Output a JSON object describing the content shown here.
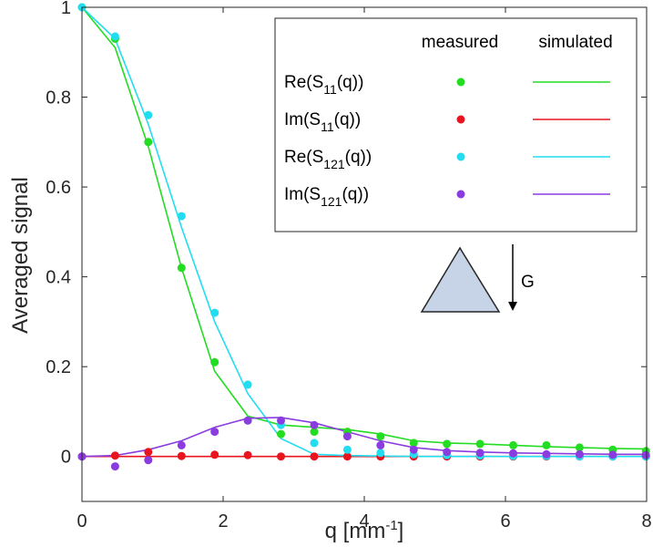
{
  "chart_data": {
    "type": "line",
    "xlabel": "q [mm",
    "xlabel_sup": "-1",
    "xlabel_end": "]",
    "ylabel": "Averaged signal",
    "xlim": [
      0,
      8
    ],
    "ylim": [
      -0.1,
      1
    ],
    "xticks": [
      0,
      2,
      4,
      6,
      8
    ],
    "yticks": [
      0,
      0.2,
      0.4,
      0.6,
      0.8,
      1
    ],
    "xtick_labels": [
      "0",
      "2",
      "4",
      "6",
      "8"
    ],
    "ytick_labels": [
      "0",
      "0.2",
      "0.4",
      "0.6",
      "0.8",
      "1"
    ],
    "legend": {
      "header_measured": "measured",
      "header_simulated": "simulated",
      "placement": "top-right"
    },
    "series": [
      {
        "id": "re11",
        "label_pre": "Re(S",
        "label_sub": "11",
        "label_post": "(q))",
        "color": "#22dd22",
        "measured": {
          "x": [
            0,
            0.47,
            0.94,
            1.41,
            1.88,
            2.35,
            2.82,
            3.29,
            3.76,
            4.23,
            4.7,
            5.17,
            5.64,
            6.11,
            6.58,
            7.05,
            7.52,
            7.99
          ],
          "y": [
            1.0,
            0.93,
            0.7,
            0.42,
            0.21,
            0.08,
            0.05,
            0.055,
            0.055,
            0.045,
            0.03,
            0.028,
            0.028,
            0.025,
            0.025,
            0.02,
            0.015,
            0.012
          ]
        },
        "simulated": {
          "x": [
            0,
            0.47,
            0.94,
            1.41,
            1.88,
            2.35,
            2.82,
            3.29,
            3.76,
            4.23,
            4.7,
            5.17,
            5.64,
            6.11,
            6.58,
            7.05,
            7.52,
            7.99
          ],
          "y": [
            1.0,
            0.91,
            0.69,
            0.42,
            0.19,
            0.09,
            0.07,
            0.065,
            0.06,
            0.05,
            0.035,
            0.03,
            0.028,
            0.025,
            0.022,
            0.02,
            0.018,
            0.017
          ]
        }
      },
      {
        "id": "im11",
        "label_pre": "Im(S",
        "label_sub": "11",
        "label_post": "(q))",
        "color": "#e8141e",
        "measured": {
          "x": [
            0,
            0.47,
            0.94,
            1.41,
            1.88,
            2.35,
            2.82,
            3.29,
            3.76,
            4.23,
            4.7,
            5.17,
            5.64,
            6.11,
            6.58,
            7.05,
            7.52,
            7.99
          ],
          "y": [
            0,
            0.002,
            0.01,
            0.001,
            0.004,
            0.003,
            0.0,
            0.0,
            0.0,
            0.0,
            0.0,
            0.0,
            0.0,
            0.0,
            0.0,
            0.0,
            0.0,
            0.0
          ]
        },
        "simulated": {
          "x": [
            0,
            8
          ],
          "y": [
            0,
            0
          ]
        }
      },
      {
        "id": "re121",
        "label_pre": "Re(S",
        "label_sub": "121",
        "label_post": "(q))",
        "color": "#22ddf0",
        "measured": {
          "x": [
            0,
            0.47,
            0.94,
            1.41,
            1.88,
            2.35,
            2.82,
            3.29,
            3.76,
            4.23,
            4.7,
            5.17,
            5.64,
            6.11,
            6.58,
            7.05,
            7.52,
            7.99
          ],
          "y": [
            1.0,
            0.935,
            0.76,
            0.535,
            0.32,
            0.16,
            0.07,
            0.03,
            0.015,
            0.008,
            0.005,
            0.003,
            0.002,
            0.001,
            0.001,
            0.0,
            0.0,
            0.0
          ]
        },
        "simulated": {
          "x": [
            0,
            0.47,
            0.94,
            1.41,
            1.88,
            2.35,
            2.82,
            3.29,
            3.76,
            4.23,
            4.7,
            5.17,
            5.64,
            6.11,
            6.58,
            7.05,
            7.52,
            7.99
          ],
          "y": [
            1.0,
            0.93,
            0.74,
            0.51,
            0.3,
            0.14,
            0.04,
            0.005,
            0.002,
            0.001,
            0.0,
            0.0,
            0.0,
            0.0,
            0.0,
            0.0,
            0.0,
            0.0
          ]
        }
      },
      {
        "id": "im121",
        "label_pre": "Im(S",
        "label_sub": "121",
        "label_post": "(q))",
        "color": "#8a3ce0",
        "measured": {
          "x": [
            0,
            0.47,
            0.94,
            1.41,
            1.88,
            2.35,
            2.82,
            3.29,
            3.76,
            4.23,
            4.7,
            5.17,
            5.64,
            6.11,
            6.58,
            7.05,
            7.52,
            7.99
          ],
          "y": [
            0,
            -0.022,
            -0.008,
            0.025,
            0.055,
            0.08,
            0.08,
            0.07,
            0.045,
            0.025,
            0.015,
            0.01,
            0.008,
            0.007,
            0.005,
            0.005,
            0.004,
            0.003
          ]
        },
        "simulated": {
          "x": [
            0,
            0.47,
            0.94,
            1.41,
            1.88,
            2.35,
            2.82,
            3.29,
            3.76,
            4.23,
            4.7,
            5.17,
            5.64,
            6.11,
            6.58,
            7.05,
            7.52,
            7.99
          ],
          "y": [
            0,
            0.002,
            0.015,
            0.035,
            0.065,
            0.085,
            0.087,
            0.075,
            0.055,
            0.035,
            0.02,
            0.013,
            0.01,
            0.008,
            0.007,
            0.006,
            0.005,
            0.005
          ]
        }
      }
    ],
    "annotation": {
      "gradient_label": "G",
      "triangle_color": "#c7d3e6"
    }
  }
}
